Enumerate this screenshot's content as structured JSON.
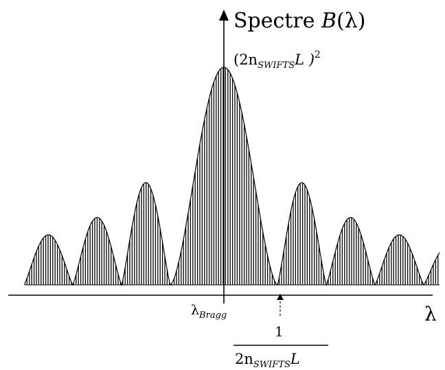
{
  "diagram": {
    "title_prefix": "Spectre ",
    "title_symbol": "B",
    "title_suffix": "(λ)",
    "peak_label": {
      "open": "(2n",
      "subscript": "SWIFTS",
      "rest": "L )",
      "power": "2"
    },
    "x_axis_label": "λ",
    "center_label": {
      "main": "λ",
      "subscript": "Bragg"
    },
    "fraction": {
      "numerator": "1",
      "den_prefix": "2n",
      "den_subscript": "SWIFTS",
      "den_suffix": "L"
    },
    "spectrum": {
      "envelope": "sinc squared",
      "main_lobe_peak": 1.0,
      "side_lobe_peaks": [
        0.47,
        0.31,
        0.23,
        0.18
      ],
      "fill_style": "vertical fringes"
    },
    "colors": {
      "ink": "#000000",
      "background": "#ffffff"
    }
  }
}
